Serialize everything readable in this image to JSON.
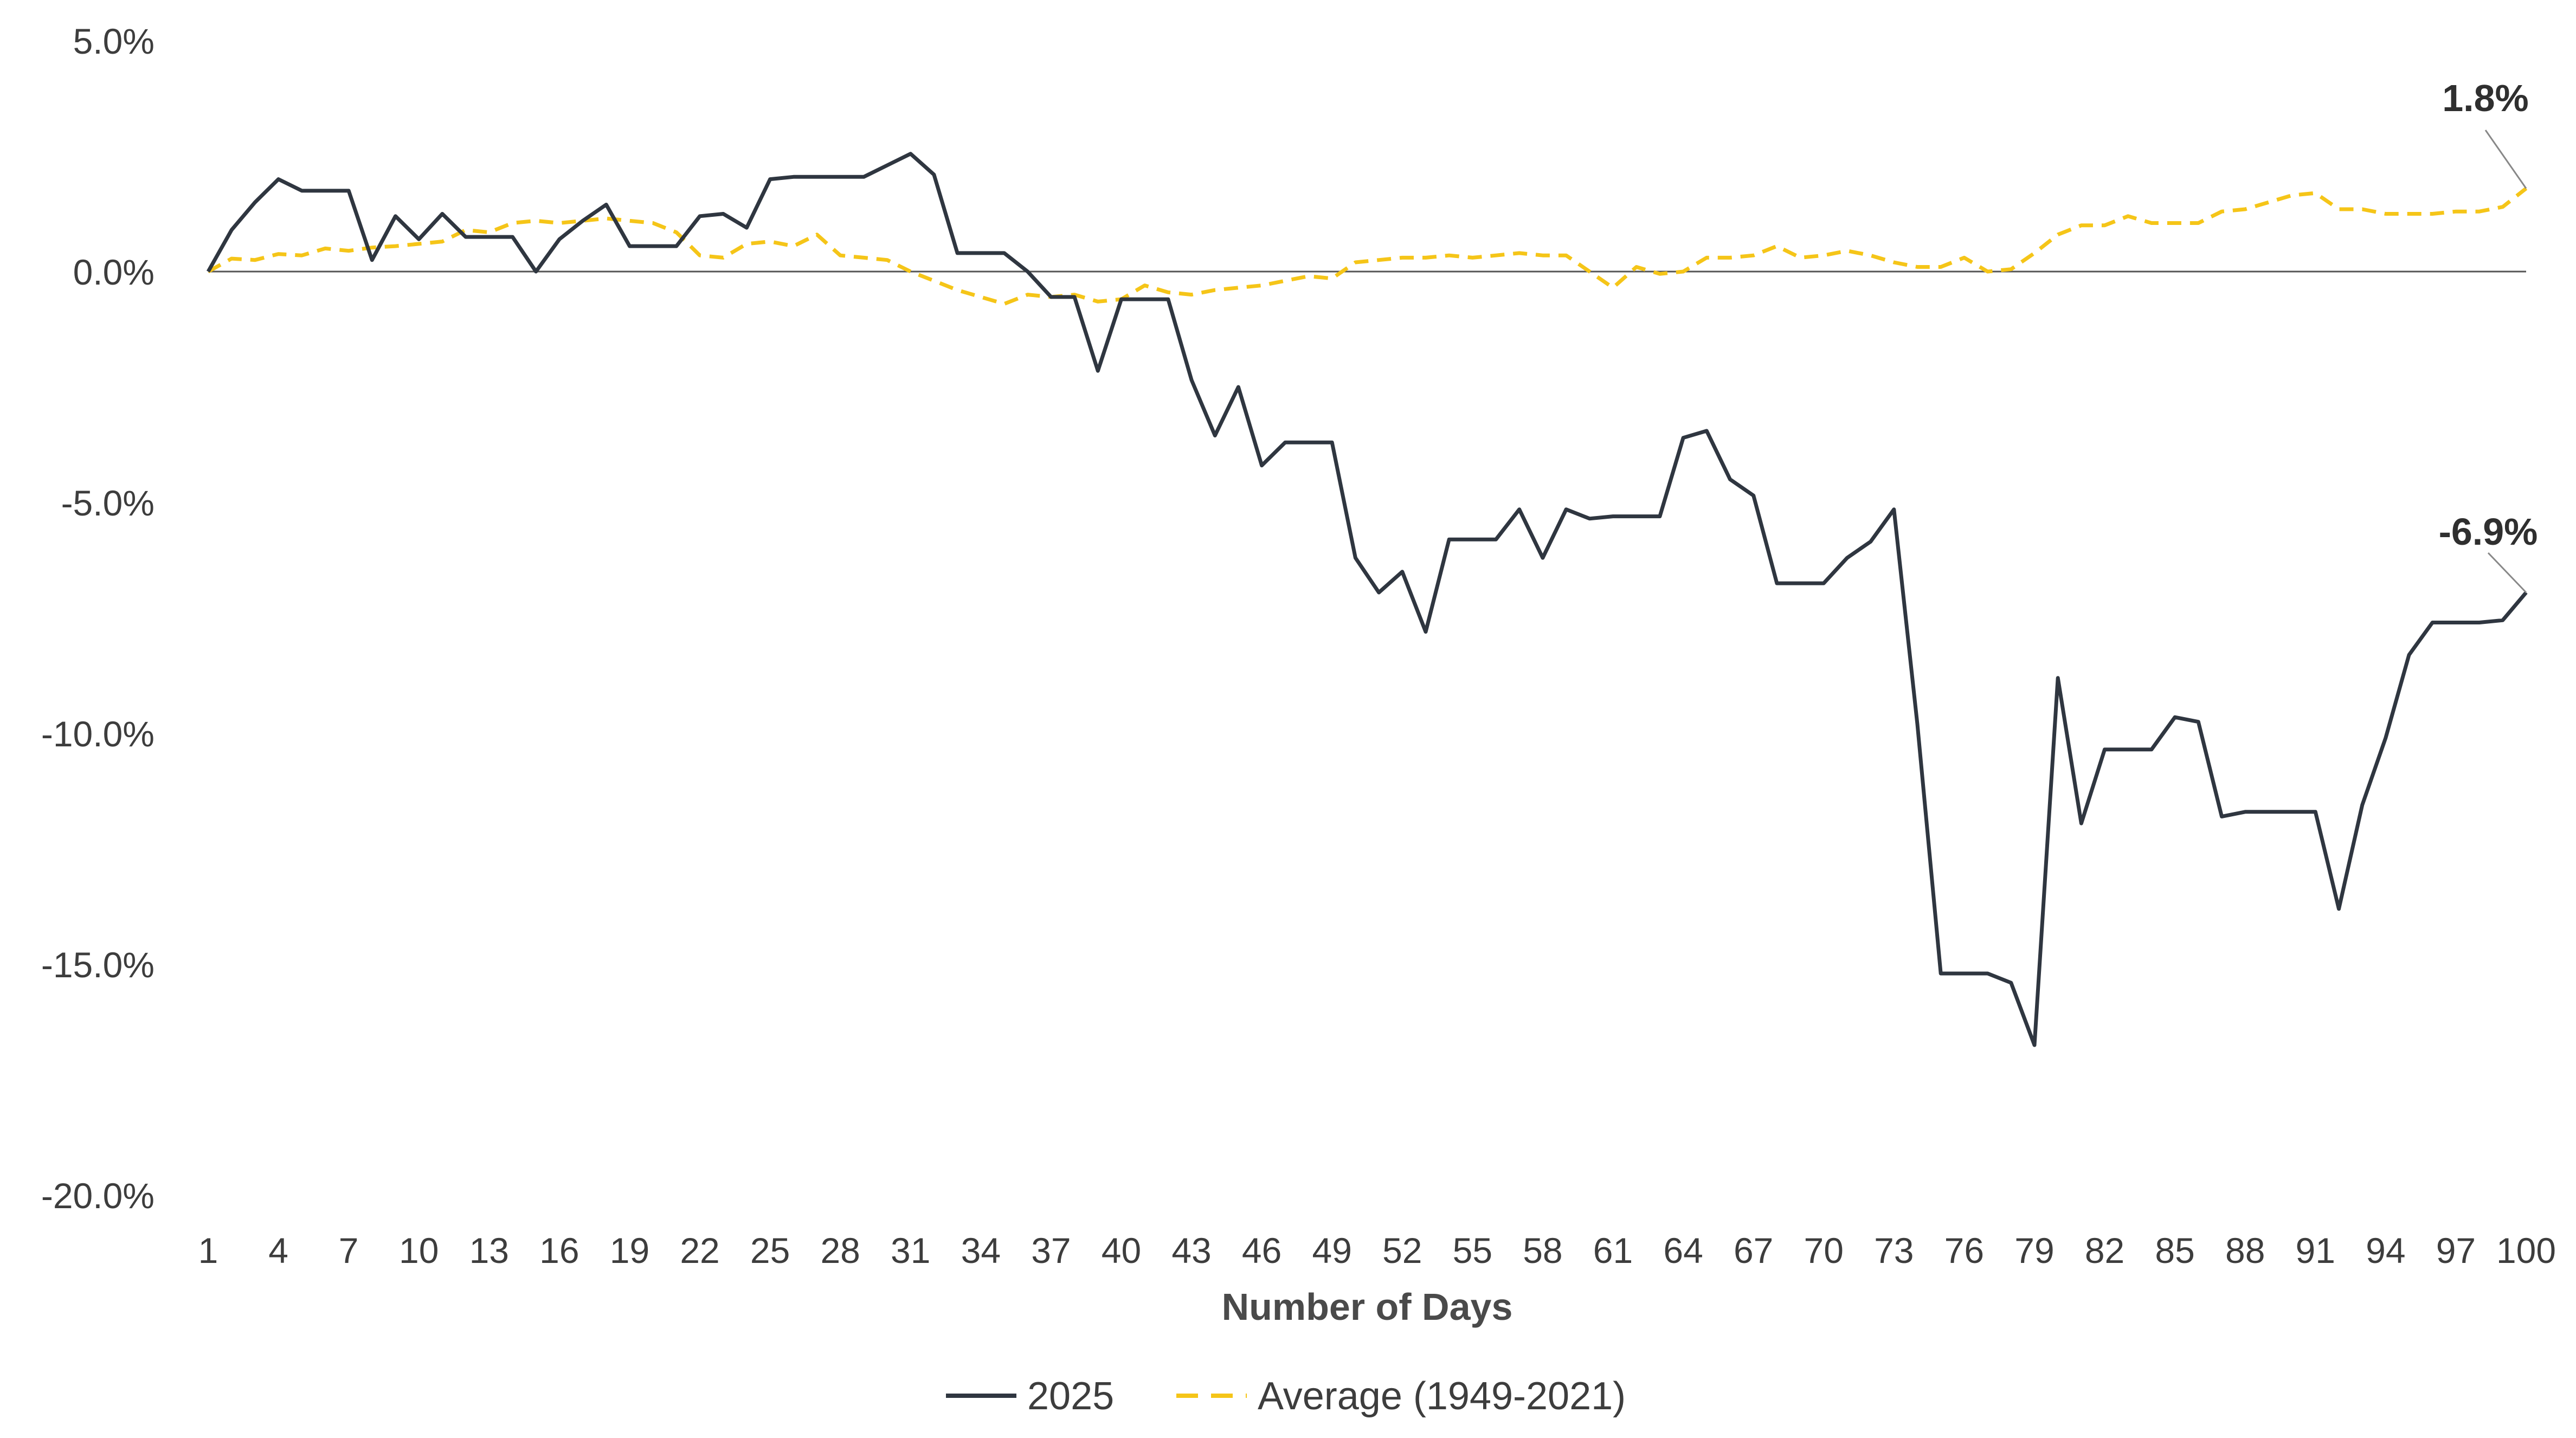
{
  "chart_data": {
    "type": "line",
    "xlabel": "Number of Days",
    "ylabel": "",
    "ylim": [
      -20,
      5
    ],
    "y_ticks": [
      5,
      0,
      -5,
      -10,
      -15,
      -20
    ],
    "y_tick_labels": [
      "5.0%",
      "0.0%",
      "-5.0%",
      "-10.0%",
      "-15.0%",
      "-20.0%"
    ],
    "x_ticks": [
      1,
      4,
      7,
      10,
      13,
      16,
      19,
      22,
      25,
      28,
      31,
      34,
      37,
      40,
      43,
      46,
      49,
      52,
      55,
      58,
      61,
      64,
      67,
      70,
      73,
      76,
      79,
      82,
      85,
      88,
      91,
      94,
      97,
      100
    ],
    "x_tick_labels": [
      "1",
      "4",
      "7",
      "10",
      "13",
      "16",
      "19",
      "22",
      "25",
      "28",
      "31",
      "34",
      "37",
      "40",
      "43",
      "46",
      "49",
      "52",
      "55",
      "58",
      "61",
      "64",
      "67",
      "70",
      "73",
      "76",
      "79",
      "82",
      "85",
      "88",
      "91",
      "94",
      "97",
      "100"
    ],
    "grid": false,
    "legend_position": "bottom",
    "series": [
      {
        "name": "2025",
        "color": "#2f3640",
        "style": "solid",
        "end_label": "-6.9%",
        "values": [
          0.0,
          0.9,
          1.5,
          2.0,
          1.75,
          1.75,
          1.75,
          0.25,
          1.2,
          0.7,
          1.25,
          0.75,
          0.75,
          0.75,
          0.0,
          0.7,
          1.1,
          1.45,
          0.55,
          0.55,
          0.55,
          1.2,
          1.25,
          0.95,
          2.0,
          2.05,
          2.05,
          2.05,
          2.05,
          2.3,
          2.55,
          2.1,
          0.4,
          0.4,
          0.4,
          0.0,
          -0.55,
          -0.55,
          -2.15,
          -0.6,
          -0.6,
          -0.6,
          -2.35,
          -3.55,
          -2.5,
          -4.2,
          -3.7,
          -3.7,
          -3.7,
          -6.2,
          -6.95,
          -6.5,
          -7.8,
          -5.8,
          -5.8,
          -5.8,
          -5.15,
          -6.2,
          -5.15,
          -5.35,
          -5.3,
          -5.3,
          -5.3,
          -3.6,
          -3.45,
          -4.5,
          -4.85,
          -6.75,
          -6.75,
          -6.75,
          -6.2,
          -5.85,
          -5.15,
          -9.8,
          -15.2,
          -15.2,
          -15.2,
          -15.4,
          -16.75,
          -8.8,
          -11.95,
          -10.35,
          -10.35,
          -10.35,
          -9.65,
          -9.75,
          -11.8,
          -11.7,
          -11.7,
          -11.7,
          -11.7,
          -13.8,
          -11.55,
          -10.1,
          -8.3,
          -7.6,
          -7.6,
          -7.6,
          -7.55,
          -6.95
        ]
      },
      {
        "name": "Average (1949-2021)",
        "color": "#f5c518",
        "style": "dashed",
        "end_label": "1.8%",
        "values": [
          0.0,
          0.28,
          0.25,
          0.38,
          0.35,
          0.5,
          0.45,
          0.52,
          0.55,
          0.6,
          0.65,
          0.9,
          0.85,
          1.05,
          1.1,
          1.05,
          1.1,
          1.15,
          1.1,
          1.05,
          0.85,
          0.35,
          0.3,
          0.6,
          0.65,
          0.55,
          0.8,
          0.35,
          0.3,
          0.25,
          0.0,
          -0.2,
          -0.4,
          -0.55,
          -0.7,
          -0.5,
          -0.55,
          -0.5,
          -0.65,
          -0.6,
          -0.3,
          -0.45,
          -0.5,
          -0.4,
          -0.35,
          -0.3,
          -0.2,
          -0.1,
          -0.15,
          0.2,
          0.25,
          0.3,
          0.3,
          0.35,
          0.3,
          0.35,
          0.4,
          0.35,
          0.35,
          0.0,
          -0.35,
          0.1,
          -0.05,
          0.0,
          0.3,
          0.3,
          0.35,
          0.55,
          0.3,
          0.35,
          0.45,
          0.35,
          0.2,
          0.1,
          0.1,
          0.3,
          0.0,
          0.05,
          0.4,
          0.8,
          1.0,
          1.0,
          1.2,
          1.05,
          1.05,
          1.05,
          1.3,
          1.35,
          1.5,
          1.65,
          1.7,
          1.35,
          1.35,
          1.25,
          1.25,
          1.25,
          1.3,
          1.3,
          1.4,
          1.8
        ]
      }
    ]
  }
}
